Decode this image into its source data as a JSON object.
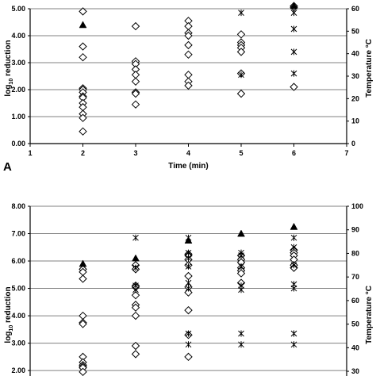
{
  "chart_data": [
    {
      "panel_label": "A",
      "type": "scatter",
      "xlabel": "Time (min)",
      "ylabel": "log10 reduction",
      "y2label": "Temperature °C",
      "xlim": [
        1,
        7
      ],
      "ylim": [
        0,
        5
      ],
      "y2lim": [
        0,
        60
      ],
      "x_ticks": [
        "1",
        "2",
        "3",
        "4",
        "5",
        "6",
        "7"
      ],
      "y_ticks": [
        "0.00",
        "1.00",
        "2.00",
        "3.00",
        "4.00",
        "5.00"
      ],
      "y2_ticks": [
        "0",
        "10",
        "20",
        "30",
        "40",
        "50",
        "60"
      ],
      "grid": true,
      "series": [
        {
          "marker": "diamond",
          "points": [
            [
              2,
              4.9
            ],
            [
              2,
              3.6
            ],
            [
              2,
              3.2
            ],
            [
              2,
              2.05
            ],
            [
              2,
              2.0
            ],
            [
              2,
              1.9
            ],
            [
              2,
              1.75
            ],
            [
              2,
              1.7
            ],
            [
              2,
              1.5
            ],
            [
              2,
              1.35
            ],
            [
              2,
              1.1
            ],
            [
              2,
              0.95
            ],
            [
              2,
              0.45
            ],
            [
              3,
              4.35
            ],
            [
              3,
              3.05
            ],
            [
              3,
              2.95
            ],
            [
              3,
              2.75
            ],
            [
              3,
              2.55
            ],
            [
              3,
              2.3
            ],
            [
              3,
              1.9
            ],
            [
              3,
              1.85
            ],
            [
              3,
              1.45
            ],
            [
              4,
              4.55
            ],
            [
              4,
              4.35
            ],
            [
              4,
              4.1
            ],
            [
              4,
              4.0
            ],
            [
              4,
              3.65
            ],
            [
              4,
              3.3
            ],
            [
              4,
              2.55
            ],
            [
              4,
              2.3
            ],
            [
              4,
              2.15
            ],
            [
              5,
              4.05
            ],
            [
              5,
              3.75
            ],
            [
              5,
              3.65
            ],
            [
              5,
              3.55
            ],
            [
              5,
              3.4
            ],
            [
              5,
              2.6
            ],
            [
              5,
              1.85
            ],
            [
              6,
              5.1
            ],
            [
              6,
              5.05
            ],
            [
              6,
              2.1
            ]
          ]
        },
        {
          "marker": "triangle",
          "points": [
            [
              2,
              4.4
            ],
            [
              6,
              5.1
            ]
          ]
        },
        {
          "marker": "star",
          "points": [
            [
              5,
              4.85
            ],
            [
              6,
              4.85
            ],
            [
              6,
              4.25
            ],
            [
              6,
              3.4
            ],
            [
              6,
              2.6
            ],
            [
              5,
              2.55
            ]
          ]
        }
      ]
    },
    {
      "panel_label": "",
      "type": "scatter",
      "ylabel": "log10 reduction",
      "y2label": "Temperature °C",
      "xlim": [
        1,
        7
      ],
      "ylim": [
        1.8,
        8
      ],
      "y2lim": [
        28,
        100
      ],
      "y_ticks": [
        "2.00",
        "3.00",
        "4.00",
        "5.00",
        "6.00",
        "7.00",
        "8.00"
      ],
      "y2_ticks": [
        "30",
        "40",
        "50",
        "60",
        "70",
        "80",
        "90",
        "100"
      ],
      "grid": true,
      "series": [
        {
          "marker": "diamond",
          "points": [
            [
              2,
              5.7
            ],
            [
              2,
              5.6
            ],
            [
              2,
              5.35
            ],
            [
              2,
              4.0
            ],
            [
              2,
              3.75
            ],
            [
              2,
              3.7
            ],
            [
              2,
              2.5
            ],
            [
              2,
              2.3
            ],
            [
              2,
              2.2
            ],
            [
              2,
              2.15
            ],
            [
              2,
              2.1
            ],
            [
              2,
              1.95
            ],
            [
              3,
              5.85
            ],
            [
              3,
              5.7
            ],
            [
              3,
              5.1
            ],
            [
              3,
              5.05
            ],
            [
              3,
              4.75
            ],
            [
              3,
              4.4
            ],
            [
              3,
              4.3
            ],
            [
              3,
              4.0
            ],
            [
              3,
              2.9
            ],
            [
              3,
              2.6
            ],
            [
              4,
              6.25
            ],
            [
              4,
              6.2
            ],
            [
              4,
              6.05
            ],
            [
              4,
              5.85
            ],
            [
              4,
              5.45
            ],
            [
              4,
              5.05
            ],
            [
              4,
              4.85
            ],
            [
              4,
              4.2
            ],
            [
              4,
              3.3
            ],
            [
              4,
              2.5
            ],
            [
              5,
              6.2
            ],
            [
              5,
              6.05
            ],
            [
              5,
              5.95
            ],
            [
              5,
              5.75
            ],
            [
              5,
              5.65
            ],
            [
              5,
              5.55
            ],
            [
              5,
              5.2
            ],
            [
              6,
              6.4
            ],
            [
              6,
              6.3
            ],
            [
              6,
              6.2
            ],
            [
              6,
              6.05
            ],
            [
              6,
              5.85
            ],
            [
              6,
              5.75
            ]
          ]
        },
        {
          "marker": "triangle",
          "points": [
            [
              2,
              5.9
            ],
            [
              3,
              6.1
            ],
            [
              4,
              6.75
            ],
            [
              5,
              7.0
            ],
            [
              6,
              7.25
            ]
          ]
        },
        {
          "marker": "star",
          "points": [
            [
              3,
              6.85
            ],
            [
              3,
              5.75
            ],
            [
              3,
              5.1
            ],
            [
              3,
              4.95
            ],
            [
              4,
              6.85
            ],
            [
              4,
              6.3
            ],
            [
              4,
              6.1
            ],
            [
              4,
              5.8
            ],
            [
              4,
              5.2
            ],
            [
              4,
              5.0
            ],
            [
              4,
              3.35
            ],
            [
              4,
              2.95
            ],
            [
              5,
              6.3
            ],
            [
              5,
              6.2
            ],
            [
              5,
              5.8
            ],
            [
              5,
              5.1
            ],
            [
              5,
              4.95
            ],
            [
              5,
              3.35
            ],
            [
              5,
              2.95
            ],
            [
              6,
              6.85
            ],
            [
              6,
              6.5
            ],
            [
              6,
              5.85
            ],
            [
              6,
              5.15
            ],
            [
              6,
              5.0
            ],
            [
              6,
              3.35
            ],
            [
              6,
              2.95
            ]
          ]
        }
      ]
    }
  ]
}
